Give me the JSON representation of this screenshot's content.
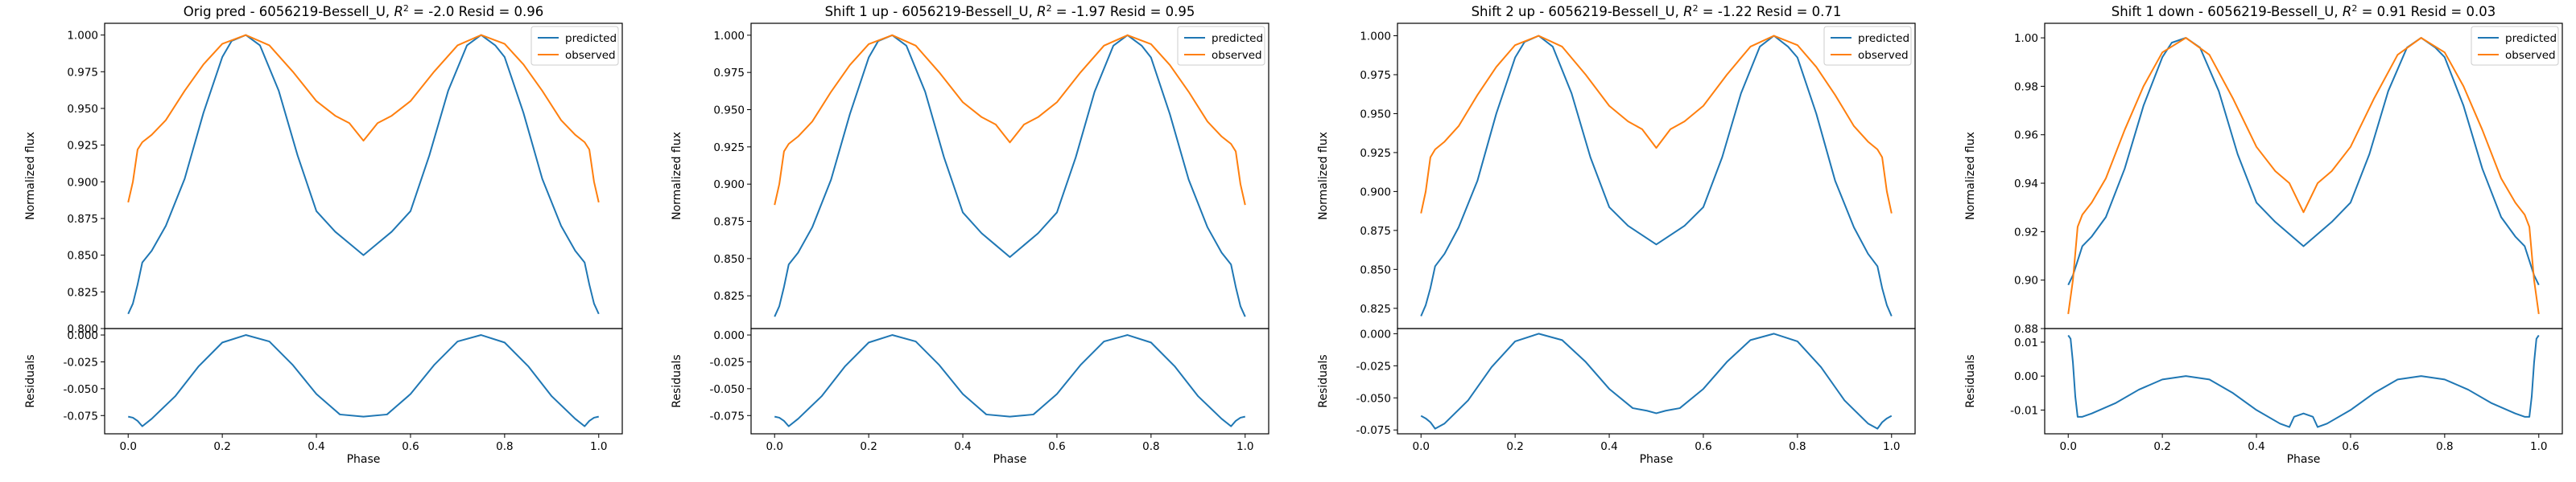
{
  "chart_data": [
    {
      "type": "line",
      "title": "Orig pred - 6056219-Bessell_U, $R^2 = $-2.0 Resid = 0.96",
      "title_parts": {
        "prefix": "Orig pred - 6056219-Bessell_U, ",
        "r2_value": "-2.0",
        "resid_text": " Resid = 0.96"
      },
      "ylabel_top": "Normalized flux",
      "ylabel_bottom": "Residuals",
      "xlabel": "Phase",
      "xlim": [
        -0.05,
        1.05
      ],
      "xticks": [
        "0.0",
        "0.2",
        "0.4",
        "0.6",
        "0.8",
        "1.0"
      ],
      "top_ylim": [
        0.8,
        1.008
      ],
      "top_yticks": [
        "0.800",
        "0.825",
        "0.850",
        "0.875",
        "0.900",
        "0.925",
        "0.950",
        "0.975",
        "1.000"
      ],
      "bottom_ylim": [
        -0.092,
        0.006
      ],
      "bottom_yticks": [
        "-0.075",
        "-0.050",
        "-0.025",
        "0.000"
      ],
      "series": [
        {
          "name": "predicted",
          "color": "#1f77b4",
          "x": [
            0,
            0.01,
            0.02,
            0.03,
            0.05,
            0.08,
            0.12,
            0.16,
            0.2,
            0.22,
            0.25,
            0.28,
            0.32,
            0.36,
            0.4,
            0.44,
            0.47,
            0.5,
            0.53,
            0.56,
            0.6,
            0.64,
            0.68,
            0.72,
            0.75,
            0.78,
            0.8,
            0.84,
            0.88,
            0.92,
            0.95,
            0.97,
            0.98,
            0.99,
            1.0
          ],
          "y": [
            0.81,
            0.817,
            0.83,
            0.845,
            0.853,
            0.87,
            0.902,
            0.947,
            0.985,
            0.996,
            1.0,
            0.993,
            0.962,
            0.918,
            0.88,
            0.866,
            0.858,
            0.85,
            0.858,
            0.866,
            0.88,
            0.918,
            0.962,
            0.993,
            1.0,
            0.993,
            0.985,
            0.947,
            0.902,
            0.87,
            0.853,
            0.845,
            0.83,
            0.817,
            0.81
          ]
        },
        {
          "name": "observed",
          "color": "#ff7f0e",
          "x": [
            0,
            0.01,
            0.02,
            0.03,
            0.05,
            0.08,
            0.12,
            0.16,
            0.2,
            0.25,
            0.3,
            0.35,
            0.4,
            0.44,
            0.47,
            0.49,
            0.5,
            0.51,
            0.53,
            0.56,
            0.6,
            0.65,
            0.7,
            0.75,
            0.8,
            0.84,
            0.88,
            0.92,
            0.95,
            0.97,
            0.98,
            0.99,
            1.0
          ],
          "y": [
            0.886,
            0.9,
            0.922,
            0.927,
            0.932,
            0.942,
            0.962,
            0.98,
            0.994,
            1.0,
            0.993,
            0.975,
            0.955,
            0.945,
            0.94,
            0.932,
            0.928,
            0.932,
            0.94,
            0.945,
            0.955,
            0.975,
            0.993,
            1.0,
            0.994,
            0.98,
            0.962,
            0.942,
            0.932,
            0.927,
            0.922,
            0.9,
            0.886
          ]
        }
      ],
      "residuals": {
        "color": "#1f77b4",
        "x": [
          0,
          0.01,
          0.02,
          0.03,
          0.05,
          0.1,
          0.15,
          0.2,
          0.25,
          0.3,
          0.35,
          0.4,
          0.45,
          0.5,
          0.55,
          0.6,
          0.65,
          0.7,
          0.75,
          0.8,
          0.85,
          0.9,
          0.95,
          0.97,
          0.98,
          0.99,
          1.0
        ],
        "y": [
          -0.076,
          -0.077,
          -0.08,
          -0.085,
          -0.078,
          -0.057,
          -0.029,
          -0.007,
          0.0,
          -0.006,
          -0.028,
          -0.055,
          -0.074,
          -0.076,
          -0.074,
          -0.055,
          -0.028,
          -0.006,
          0.0,
          -0.007,
          -0.029,
          -0.057,
          -0.078,
          -0.085,
          -0.08,
          -0.077,
          -0.076
        ]
      },
      "legend": "top-right",
      "grid": false
    },
    {
      "type": "line",
      "title": "Shift 1 up - 6056219-Bessell_U, $R^2 = $-1.97 Resid = 0.95",
      "title_parts": {
        "prefix": "Shift 1 up - 6056219-Bessell_U, ",
        "r2_value": "-1.97",
        "resid_text": " Resid = 0.95"
      },
      "ylabel_top": "Normalized flux",
      "ylabel_bottom": "Residuals",
      "xlabel": "Phase",
      "xlim": [
        -0.05,
        1.05
      ],
      "xticks": [
        "0.0",
        "0.2",
        "0.4",
        "0.6",
        "0.8",
        "1.0"
      ],
      "top_ylim": [
        0.803,
        1.008
      ],
      "top_yticks": [
        "0.825",
        "0.850",
        "0.875",
        "0.900",
        "0.925",
        "0.950",
        "0.975",
        "1.000"
      ],
      "bottom_ylim": [
        -0.092,
        0.006
      ],
      "bottom_yticks": [
        "-0.075",
        "-0.050",
        "-0.025",
        "0.000"
      ],
      "series": [
        {
          "name": "predicted",
          "color": "#1f77b4",
          "x": [
            0,
            0.01,
            0.02,
            0.03,
            0.05,
            0.08,
            0.12,
            0.16,
            0.2,
            0.22,
            0.25,
            0.28,
            0.32,
            0.36,
            0.4,
            0.44,
            0.47,
            0.5,
            0.53,
            0.56,
            0.6,
            0.64,
            0.68,
            0.72,
            0.75,
            0.78,
            0.8,
            0.84,
            0.88,
            0.92,
            0.95,
            0.97,
            0.98,
            0.99,
            1.0
          ],
          "y": [
            0.811,
            0.818,
            0.831,
            0.846,
            0.854,
            0.871,
            0.903,
            0.947,
            0.985,
            0.996,
            1.0,
            0.993,
            0.962,
            0.918,
            0.881,
            0.867,
            0.859,
            0.851,
            0.859,
            0.867,
            0.881,
            0.918,
            0.962,
            0.993,
            1.0,
            0.993,
            0.985,
            0.947,
            0.903,
            0.871,
            0.854,
            0.846,
            0.831,
            0.818,
            0.811
          ]
        },
        {
          "name": "observed",
          "color": "#ff7f0e",
          "x": [
            0,
            0.01,
            0.02,
            0.03,
            0.05,
            0.08,
            0.12,
            0.16,
            0.2,
            0.25,
            0.3,
            0.35,
            0.4,
            0.44,
            0.47,
            0.49,
            0.5,
            0.51,
            0.53,
            0.56,
            0.6,
            0.65,
            0.7,
            0.75,
            0.8,
            0.84,
            0.88,
            0.92,
            0.95,
            0.97,
            0.98,
            0.99,
            1.0
          ],
          "y": [
            0.886,
            0.9,
            0.922,
            0.927,
            0.932,
            0.942,
            0.962,
            0.98,
            0.994,
            1.0,
            0.993,
            0.975,
            0.955,
            0.945,
            0.94,
            0.932,
            0.928,
            0.932,
            0.94,
            0.945,
            0.955,
            0.975,
            0.993,
            1.0,
            0.994,
            0.98,
            0.962,
            0.942,
            0.932,
            0.927,
            0.922,
            0.9,
            0.886
          ]
        }
      ],
      "residuals": {
        "color": "#1f77b4",
        "x": [
          0,
          0.01,
          0.02,
          0.03,
          0.05,
          0.1,
          0.15,
          0.2,
          0.25,
          0.3,
          0.35,
          0.4,
          0.45,
          0.5,
          0.55,
          0.6,
          0.65,
          0.7,
          0.75,
          0.8,
          0.85,
          0.9,
          0.95,
          0.97,
          0.98,
          0.99,
          1.0
        ],
        "y": [
          -0.076,
          -0.077,
          -0.08,
          -0.085,
          -0.078,
          -0.057,
          -0.029,
          -0.007,
          0.0,
          -0.006,
          -0.028,
          -0.055,
          -0.074,
          -0.076,
          -0.074,
          -0.055,
          -0.028,
          -0.006,
          0.0,
          -0.007,
          -0.029,
          -0.057,
          -0.078,
          -0.085,
          -0.08,
          -0.077,
          -0.076
        ]
      },
      "legend": "top-right",
      "grid": false
    },
    {
      "type": "line",
      "title": "Shift 2 up - 6056219-Bessell_U, $R^2 = $-1.22 Resid = 0.71",
      "title_parts": {
        "prefix": "Shift 2 up - 6056219-Bessell_U, ",
        "r2_value": "-1.22",
        "resid_text": " Resid = 0.71"
      },
      "ylabel_top": "Normalized flux",
      "ylabel_bottom": "Residuals",
      "xlabel": "Phase",
      "xlim": [
        -0.05,
        1.05
      ],
      "xticks": [
        "0.0",
        "0.2",
        "0.4",
        "0.6",
        "0.8",
        "1.0"
      ],
      "top_ylim": [
        0.812,
        1.008
      ],
      "top_yticks": [
        "0.825",
        "0.850",
        "0.875",
        "0.900",
        "0.925",
        "0.950",
        "0.975",
        "1.000"
      ],
      "bottom_ylim": [
        -0.078,
        0.004
      ],
      "bottom_yticks": [
        "-0.075",
        "-0.050",
        "-0.025",
        "0.000"
      ],
      "series": [
        {
          "name": "predicted",
          "color": "#1f77b4",
          "x": [
            0,
            0.01,
            0.02,
            0.03,
            0.05,
            0.08,
            0.12,
            0.16,
            0.2,
            0.22,
            0.25,
            0.28,
            0.32,
            0.36,
            0.4,
            0.44,
            0.47,
            0.5,
            0.53,
            0.56,
            0.6,
            0.64,
            0.68,
            0.72,
            0.75,
            0.78,
            0.8,
            0.84,
            0.88,
            0.92,
            0.95,
            0.97,
            0.98,
            0.99,
            1.0
          ],
          "y": [
            0.82,
            0.827,
            0.838,
            0.852,
            0.86,
            0.877,
            0.907,
            0.95,
            0.986,
            0.996,
            1.0,
            0.993,
            0.963,
            0.922,
            0.89,
            0.878,
            0.872,
            0.866,
            0.872,
            0.878,
            0.89,
            0.922,
            0.963,
            0.993,
            1.0,
            0.993,
            0.986,
            0.95,
            0.907,
            0.877,
            0.86,
            0.852,
            0.838,
            0.827,
            0.82
          ]
        },
        {
          "name": "observed",
          "color": "#ff7f0e",
          "x": [
            0,
            0.01,
            0.02,
            0.03,
            0.05,
            0.08,
            0.12,
            0.16,
            0.2,
            0.25,
            0.3,
            0.35,
            0.4,
            0.44,
            0.47,
            0.49,
            0.5,
            0.51,
            0.53,
            0.56,
            0.6,
            0.65,
            0.7,
            0.75,
            0.8,
            0.84,
            0.88,
            0.92,
            0.95,
            0.97,
            0.98,
            0.99,
            1.0
          ],
          "y": [
            0.886,
            0.9,
            0.922,
            0.927,
            0.932,
            0.942,
            0.962,
            0.98,
            0.994,
            1.0,
            0.993,
            0.975,
            0.955,
            0.945,
            0.94,
            0.932,
            0.928,
            0.932,
            0.94,
            0.945,
            0.955,
            0.975,
            0.993,
            1.0,
            0.994,
            0.98,
            0.962,
            0.942,
            0.932,
            0.927,
            0.922,
            0.9,
            0.886
          ]
        }
      ],
      "residuals": {
        "color": "#1f77b4",
        "x": [
          0,
          0.01,
          0.02,
          0.03,
          0.05,
          0.1,
          0.15,
          0.2,
          0.25,
          0.3,
          0.35,
          0.4,
          0.45,
          0.48,
          0.5,
          0.52,
          0.55,
          0.6,
          0.65,
          0.7,
          0.75,
          0.8,
          0.85,
          0.9,
          0.95,
          0.97,
          0.98,
          0.99,
          1.0
        ],
        "y": [
          -0.064,
          -0.066,
          -0.069,
          -0.074,
          -0.07,
          -0.052,
          -0.026,
          -0.006,
          0.0,
          -0.005,
          -0.022,
          -0.043,
          -0.058,
          -0.06,
          -0.062,
          -0.06,
          -0.058,
          -0.043,
          -0.022,
          -0.005,
          0.0,
          -0.006,
          -0.026,
          -0.052,
          -0.07,
          -0.074,
          -0.069,
          -0.066,
          -0.064
        ]
      },
      "legend": "top-right",
      "grid": false
    },
    {
      "type": "line",
      "title": "Shift 1 down - 6056219-Bessell_U, $R^2 = $0.91 Resid = 0.03",
      "title_parts": {
        "prefix": "Shift 1 down - 6056219-Bessell_U, ",
        "r2_value": "0.91",
        "resid_text": " Resid = 0.03"
      },
      "ylabel_top": "Normalized flux",
      "ylabel_bottom": "Residuals",
      "xlabel": "Phase",
      "xlim": [
        -0.05,
        1.05
      ],
      "xticks": [
        "0.0",
        "0.2",
        "0.4",
        "0.6",
        "0.8",
        "1.0"
      ],
      "top_ylim": [
        0.88,
        1.006
      ],
      "top_yticks": [
        "0.88",
        "0.90",
        "0.92",
        "0.94",
        "0.96",
        "0.98",
        "1.00"
      ],
      "bottom_ylim": [
        -0.017,
        0.014
      ],
      "bottom_yticks": [
        "-0.01",
        "0.00",
        "0.01"
      ],
      "series": [
        {
          "name": "predicted",
          "color": "#1f77b4",
          "x": [
            0,
            0.01,
            0.02,
            0.03,
            0.05,
            0.08,
            0.12,
            0.16,
            0.2,
            0.22,
            0.25,
            0.28,
            0.32,
            0.36,
            0.4,
            0.44,
            0.47,
            0.5,
            0.53,
            0.56,
            0.6,
            0.64,
            0.68,
            0.72,
            0.75,
            0.78,
            0.8,
            0.84,
            0.88,
            0.92,
            0.95,
            0.97,
            0.98,
            0.99,
            1.0
          ],
          "y": [
            0.898,
            0.902,
            0.908,
            0.914,
            0.918,
            0.926,
            0.946,
            0.972,
            0.992,
            0.998,
            1.0,
            0.996,
            0.978,
            0.952,
            0.932,
            0.924,
            0.919,
            0.914,
            0.919,
            0.924,
            0.932,
            0.952,
            0.978,
            0.996,
            1.0,
            0.996,
            0.992,
            0.972,
            0.946,
            0.926,
            0.918,
            0.914,
            0.908,
            0.902,
            0.898
          ]
        },
        {
          "name": "observed",
          "color": "#ff7f0e",
          "x": [
            0,
            0.01,
            0.02,
            0.03,
            0.05,
            0.08,
            0.12,
            0.16,
            0.2,
            0.25,
            0.3,
            0.35,
            0.4,
            0.44,
            0.47,
            0.49,
            0.5,
            0.51,
            0.53,
            0.56,
            0.6,
            0.65,
            0.7,
            0.75,
            0.8,
            0.84,
            0.88,
            0.92,
            0.95,
            0.97,
            0.98,
            0.99,
            1.0
          ],
          "y": [
            0.886,
            0.9,
            0.922,
            0.927,
            0.932,
            0.942,
            0.962,
            0.98,
            0.994,
            1.0,
            0.993,
            0.975,
            0.955,
            0.945,
            0.94,
            0.932,
            0.928,
            0.932,
            0.94,
            0.945,
            0.955,
            0.975,
            0.993,
            1.0,
            0.994,
            0.98,
            0.962,
            0.942,
            0.932,
            0.927,
            0.922,
            0.9,
            0.886
          ]
        }
      ],
      "residuals": {
        "color": "#1f77b4",
        "x": [
          0,
          0.005,
          0.01,
          0.015,
          0.02,
          0.03,
          0.05,
          0.1,
          0.15,
          0.2,
          0.25,
          0.3,
          0.35,
          0.4,
          0.45,
          0.47,
          0.48,
          0.5,
          0.52,
          0.53,
          0.55,
          0.6,
          0.65,
          0.7,
          0.75,
          0.8,
          0.85,
          0.9,
          0.95,
          0.97,
          0.98,
          0.985,
          0.99,
          0.995,
          1.0
        ],
        "y": [
          0.012,
          0.011,
          0.004,
          -0.006,
          -0.012,
          -0.012,
          -0.011,
          -0.008,
          -0.004,
          -0.001,
          0.0,
          -0.001,
          -0.005,
          -0.01,
          -0.014,
          -0.015,
          -0.012,
          -0.011,
          -0.012,
          -0.015,
          -0.014,
          -0.01,
          -0.005,
          -0.001,
          0.0,
          -0.001,
          -0.004,
          -0.008,
          -0.011,
          -0.012,
          -0.012,
          -0.006,
          0.004,
          0.011,
          0.012
        ]
      },
      "legend": "top-right",
      "grid": false
    }
  ]
}
